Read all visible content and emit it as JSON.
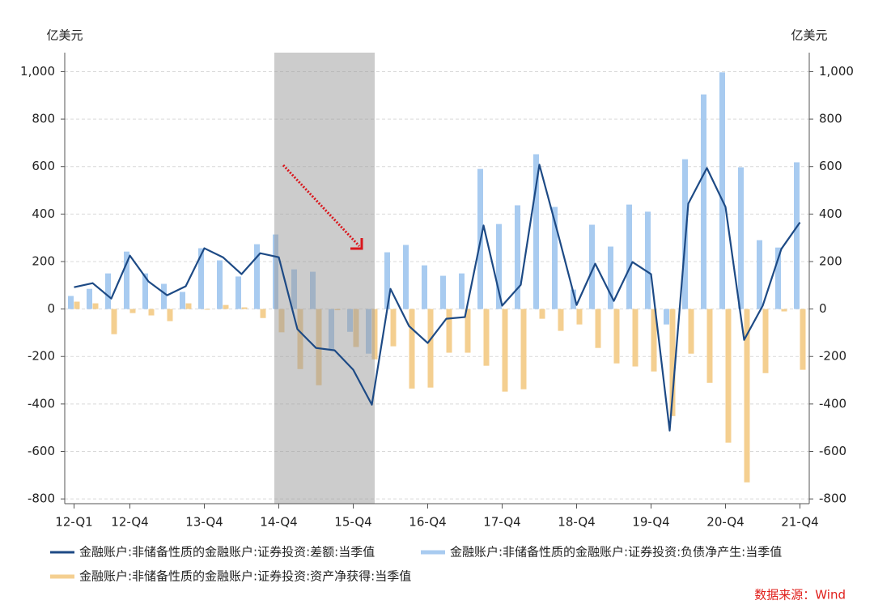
{
  "chart_data": {
    "type": "bar_line",
    "y_unit": "亿美元",
    "y2_unit": "亿美元",
    "source": "数据来源：Wind",
    "categories": [
      "12-Q1",
      null,
      null,
      "12-Q4",
      null,
      null,
      null,
      "13-Q4",
      null,
      null,
      null,
      "14-Q4",
      null,
      null,
      null,
      "15-Q4",
      null,
      null,
      null,
      "16-Q4",
      null,
      null,
      null,
      "17-Q4",
      null,
      null,
      null,
      "18-Q4",
      null,
      null,
      null,
      "19-Q4",
      null,
      null,
      null,
      "20-Q4",
      null,
      null,
      null,
      "21-Q4"
    ],
    "series": [
      {
        "name": "金融账户:非储备性质的金融账户:证券投资:差额:当季值",
        "kind": "line",
        "color": "#1d4a85",
        "values": [
          92,
          109,
          44,
          225,
          116,
          58,
          96,
          256,
          218,
          147,
          235,
          218,
          -85,
          -164,
          -174,
          -256,
          -403,
          85,
          -72,
          -143,
          -41,
          -34,
          352,
          14,
          102,
          608,
          317,
          17,
          191,
          34,
          198,
          147,
          -512,
          444,
          594,
          430,
          -130,
          14,
          253,
          365
        ]
      },
      {
        "name": "金融账户:非储备性质的金融账户:证券投资:负债净产生:当季值",
        "kind": "bar",
        "color": "#a8cbf0",
        "values": [
          55,
          85,
          150,
          242,
          150,
          106,
          72,
          256,
          205,
          137,
          273,
          314,
          167,
          157,
          -170,
          -96,
          -188,
          239,
          270,
          184,
          140,
          150,
          590,
          358,
          437,
          652,
          430,
          82,
          355,
          263,
          440,
          410,
          -65,
          631,
          904,
          997,
          597,
          290,
          259,
          618
        ]
      },
      {
        "name": "金融账户:非储备性质的金融账户:证券投资:资产净获得:当季值",
        "kind": "bar",
        "color": "#f4cf90",
        "values": [
          31,
          24,
          -106,
          -17,
          -27,
          -51,
          24,
          -3,
          17,
          7,
          -38,
          -98,
          -253,
          -321,
          -5,
          -160,
          -212,
          -157,
          -335,
          -331,
          -184,
          -184,
          -239,
          -348,
          -338,
          -41,
          -92,
          -65,
          -164,
          -229,
          -242,
          -263,
          -451,
          -188,
          -311,
          -563,
          -730,
          -270,
          -10,
          -256
        ]
      }
    ],
    "ylim": [
      -820,
      1080
    ],
    "yticks": [
      -800,
      -600,
      -400,
      -200,
      0,
      200,
      400,
      600,
      800,
      {
        "value": 1000,
        "label": "1,000"
      }
    ],
    "y2lim": [
      -820,
      1080
    ],
    "y2ticks": [
      -800,
      -600,
      -400,
      -200,
      0,
      200,
      400,
      600,
      800,
      {
        "value": 1000,
        "label": "1,000"
      }
    ],
    "grid": true
  }
}
